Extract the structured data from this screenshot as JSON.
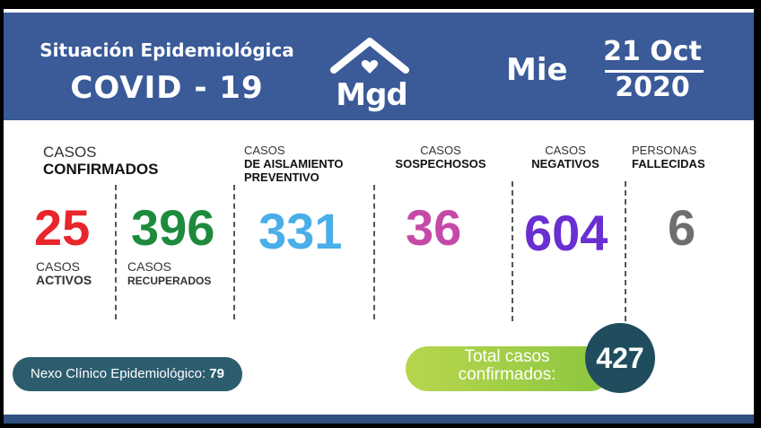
{
  "header": {
    "title": "Situación Epidemiológica",
    "subtitle": "COVID - 19",
    "logo_text": "Mgd",
    "day": "Mie",
    "date_top": "21 Oct",
    "date_bottom": "2020"
  },
  "colors": {
    "header_bg": "#3a5a98",
    "activos": "#e8262b",
    "recuperados": "#1e8b3c",
    "aislamiento": "#4aaee8",
    "sospechosos": "#c54aa8",
    "negativos": "#6a2fd1",
    "fallecidas": "#6e6e6e",
    "nexo_bg": "#2c5d6f",
    "total_circle": "#1f4d5e",
    "total_pill": "#9dcc46"
  },
  "stats": {
    "confirmados": {
      "label_top": "CASOS",
      "label_bold": "CONFIRMADOS"
    },
    "activos": {
      "value": "25",
      "label_top": "CASOS",
      "label_bold": "ACTIVOS"
    },
    "recuperados": {
      "value": "396",
      "label_top": "CASOS",
      "label_bold": "RECUPERADOS"
    },
    "aislamiento": {
      "value": "331",
      "label_top": "CASOS",
      "label_bold1": "DE AISLAMIENTO",
      "label_bold2": "PREVENTIVO"
    },
    "sospechosos": {
      "value": "36",
      "label_top": "CASOS",
      "label_bold": "SOSPECHOSOS"
    },
    "negativos": {
      "value": "604",
      "label_top": "CASOS",
      "label_bold": "NEGATIVOS"
    },
    "fallecidas": {
      "value": "6",
      "label_top": "PERSONAS",
      "label_bold": "FALLECIDAS"
    }
  },
  "nexo": {
    "label": "Nexo Clínico Epidemiológico:",
    "value": "79"
  },
  "total": {
    "line1": "Total casos",
    "line2": "confirmados:",
    "value": "427"
  }
}
